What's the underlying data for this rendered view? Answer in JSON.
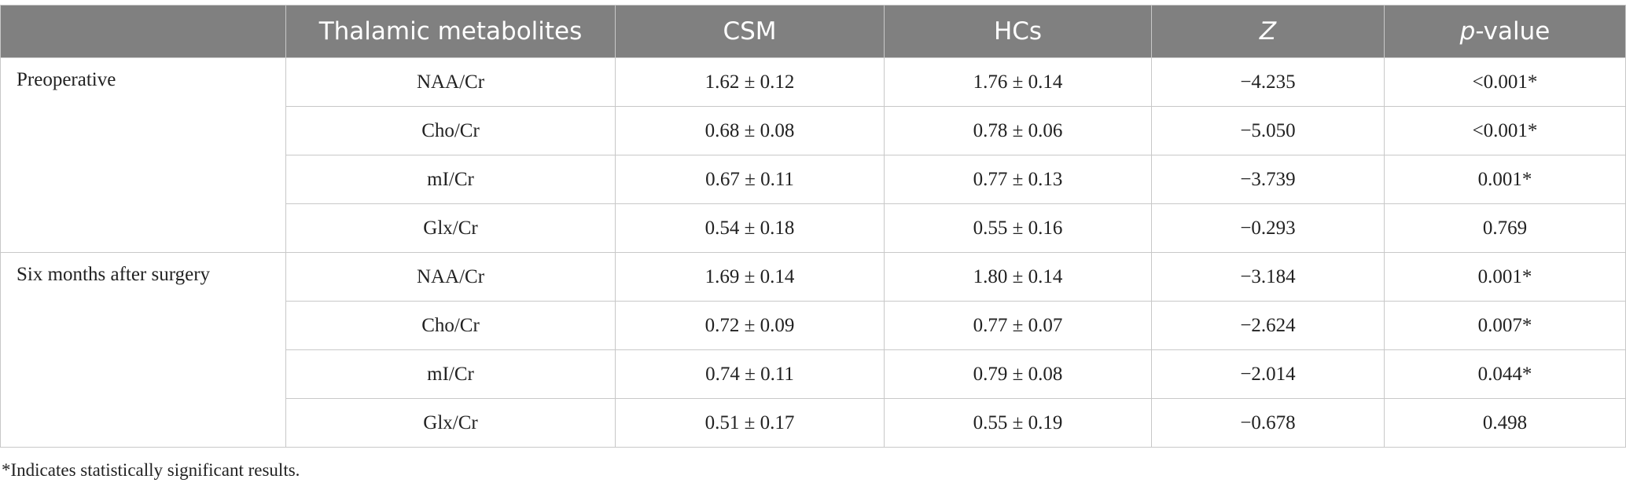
{
  "table": {
    "header": [
      "Thalamic metabolites",
      "CSM",
      "HCs",
      "Z",
      {
        "italic": "p",
        "text": "-value"
      }
    ],
    "groups": [
      {
        "label": "Preoperative",
        "rows": [
          [
            "NAA/Cr",
            "1.62 ± 0.12",
            "1.76 ± 0.14",
            "−4.235",
            "<0.001*"
          ],
          [
            "Cho/Cr",
            "0.68 ± 0.08",
            "0.78 ± 0.06",
            "−5.050",
            "<0.001*"
          ],
          [
            "mI/Cr",
            "0.67 ± 0.11",
            "0.77 ± 0.13",
            "−3.739",
            "0.001*"
          ],
          [
            "Glx/Cr",
            "0.54 ± 0.18",
            "0.55 ± 0.16",
            "−0.293",
            "0.769"
          ]
        ]
      },
      {
        "label": "Six months after surgery",
        "rows": [
          [
            "NAA/Cr",
            "1.69 ± 0.14",
            "1.80 ± 0.14",
            "−3.184",
            "0.001*"
          ],
          [
            "Cho/Cr",
            "0.72 ± 0.09",
            "0.77 ± 0.07",
            "−2.624",
            "0.007*"
          ],
          [
            "mI/Cr",
            "0.74 ± 0.11",
            "0.79 ± 0.08",
            "−2.014",
            "0.044*"
          ],
          [
            "Glx/Cr",
            "0.51 ± 0.17",
            "0.55 ± 0.19",
            "−0.678",
            "0.498"
          ]
        ]
      }
    ],
    "footnote": "*Indicates statistically significant results."
  }
}
